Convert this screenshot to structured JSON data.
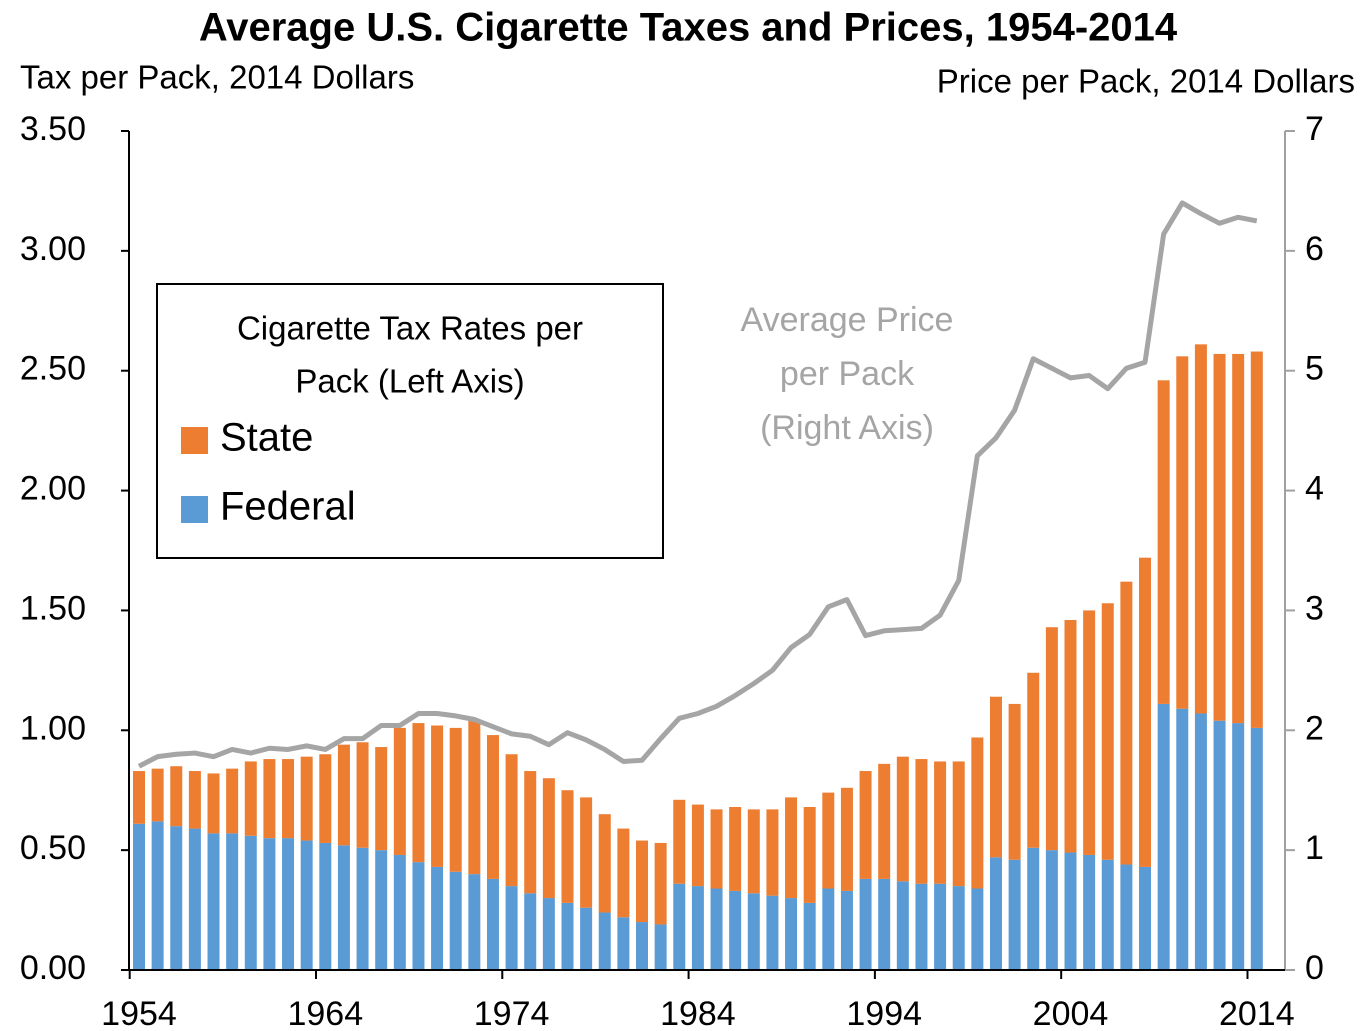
{
  "chart_data": {
    "type": "bar",
    "title": "Average U.S. Cigarette Taxes and Prices, 1954-2014",
    "ylabel": "Tax per Pack, 2014 Dollars",
    "y2label": "Price per Pack, 2014 Dollars",
    "legend_title": [
      "Cigarette Tax Rates per",
      "Pack (Left Axis)"
    ],
    "annotation": [
      "Average Price",
      "per Pack",
      "(Right Axis)"
    ],
    "stacked": true,
    "x": [
      1954,
      1955,
      1956,
      1957,
      1958,
      1959,
      1960,
      1961,
      1962,
      1963,
      1964,
      1965,
      1966,
      1967,
      1968,
      1969,
      1970,
      1971,
      1972,
      1973,
      1974,
      1975,
      1976,
      1977,
      1978,
      1979,
      1980,
      1981,
      1982,
      1983,
      1984,
      1985,
      1986,
      1987,
      1988,
      1989,
      1990,
      1991,
      1992,
      1993,
      1994,
      1995,
      1996,
      1997,
      1998,
      1999,
      2000,
      2001,
      2002,
      2003,
      2004,
      2005,
      2006,
      2007,
      2008,
      2009,
      2010,
      2011,
      2012,
      2013,
      2014
    ],
    "xticks": [
      1954,
      1964,
      1974,
      1984,
      1994,
      2004,
      2014
    ],
    "series": [
      {
        "name": "Federal",
        "type": "bar",
        "color": "#5b9bd5",
        "values": [
          0.61,
          0.62,
          0.6,
          0.59,
          0.57,
          0.57,
          0.56,
          0.55,
          0.55,
          0.54,
          0.53,
          0.52,
          0.51,
          0.5,
          0.48,
          0.45,
          0.43,
          0.41,
          0.4,
          0.38,
          0.35,
          0.32,
          0.3,
          0.28,
          0.26,
          0.24,
          0.22,
          0.2,
          0.19,
          0.36,
          0.35,
          0.34,
          0.33,
          0.32,
          0.31,
          0.3,
          0.28,
          0.34,
          0.33,
          0.38,
          0.38,
          0.37,
          0.36,
          0.36,
          0.35,
          0.34,
          0.47,
          0.46,
          0.51,
          0.5,
          0.49,
          0.48,
          0.46,
          0.44,
          0.43,
          1.11,
          1.09,
          1.07,
          1.04,
          1.03,
          1.01
        ]
      },
      {
        "name": "State",
        "type": "bar",
        "color": "#ed7d31",
        "values": [
          0.22,
          0.22,
          0.25,
          0.24,
          0.25,
          0.27,
          0.31,
          0.33,
          0.33,
          0.35,
          0.37,
          0.42,
          0.44,
          0.43,
          0.53,
          0.58,
          0.59,
          0.6,
          0.64,
          0.6,
          0.55,
          0.51,
          0.5,
          0.47,
          0.46,
          0.41,
          0.37,
          0.34,
          0.34,
          0.35,
          0.34,
          0.33,
          0.35,
          0.35,
          0.36,
          0.42,
          0.4,
          0.4,
          0.43,
          0.45,
          0.48,
          0.52,
          0.52,
          0.51,
          0.52,
          0.63,
          0.67,
          0.65,
          0.73,
          0.93,
          0.97,
          1.02,
          1.07,
          1.18,
          1.29,
          1.35,
          1.47,
          1.54,
          1.53,
          1.54,
          1.57
        ]
      },
      {
        "name": "Average Price per Pack",
        "type": "line",
        "axis": "y2",
        "color": "#a5a5a5",
        "values": [
          1.7,
          1.78,
          1.8,
          1.81,
          1.78,
          1.84,
          1.81,
          1.85,
          1.84,
          1.87,
          1.84,
          1.93,
          1.93,
          2.04,
          2.04,
          2.14,
          2.14,
          2.12,
          2.09,
          2.03,
          1.97,
          1.95,
          1.88,
          1.98,
          1.92,
          1.84,
          1.74,
          1.75,
          1.93,
          2.1,
          2.14,
          2.2,
          2.29,
          2.39,
          2.5,
          2.69,
          2.8,
          3.03,
          3.09,
          2.79,
          2.83,
          2.84,
          2.85,
          2.96,
          3.25,
          4.29,
          4.44,
          4.67,
          5.1,
          5.02,
          4.94,
          4.96,
          4.85,
          5.02,
          5.07,
          6.14,
          6.4,
          6.31,
          6.23,
          6.28,
          6.25
        ]
      }
    ],
    "ylim": [
      0,
      3.5
    ],
    "yticks": [
      {
        "value": 0,
        "label": "0.00"
      },
      {
        "value": 0.5,
        "label": "0.50"
      },
      {
        "value": 1,
        "label": "1.00"
      },
      {
        "value": 1.5,
        "label": "1.50"
      },
      {
        "value": 2,
        "label": "2.00"
      },
      {
        "value": 2.5,
        "label": "2.50"
      },
      {
        "value": 3,
        "label": "3.00"
      },
      {
        "value": 3.5,
        "label": "3.50"
      }
    ],
    "y2lim": [
      0,
      7
    ],
    "y2ticks": [
      0,
      1,
      2,
      3,
      4,
      5,
      6,
      7
    ],
    "grid": false
  }
}
